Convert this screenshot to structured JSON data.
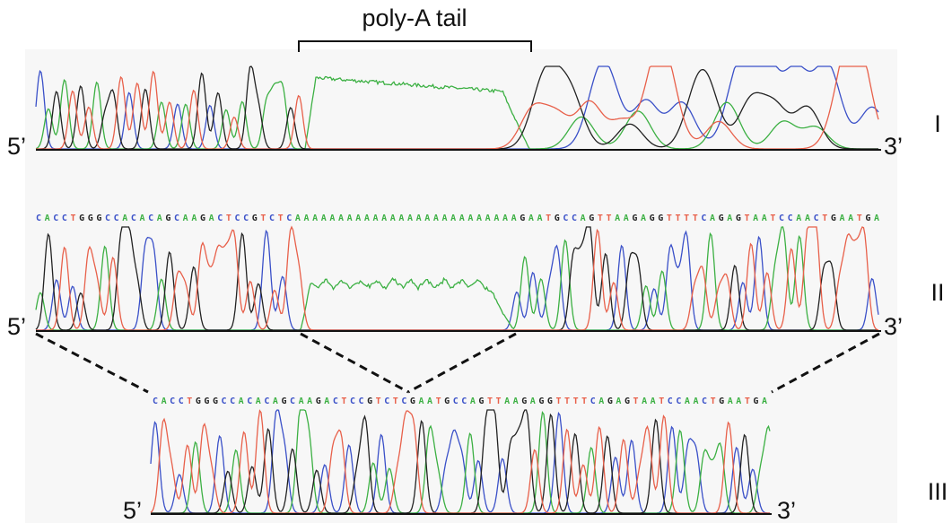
{
  "header": {
    "title": "poly-A tail"
  },
  "panels": [
    {
      "label": "I",
      "five": "5’",
      "three": "3’"
    },
    {
      "label": "II",
      "five": "5’",
      "three": "3’",
      "sequence": "CACCTGGGCCACACAGCAAGACTCCGTCTCAAAAAAAAAAAAAAAAAAAAAAAAAAGAATGCCAGTTAAGAGGTTTTCAGAGTAATCCAACTGAATGA"
    },
    {
      "label": "III",
      "five": "5’",
      "three": "3’",
      "sequence": "CACCTGGGCCACACAGCAAGACTCCGTCTCGAATGCCAGTTAAGAGGTTTTCAGAGTAATCCAACTGAATGA"
    }
  ]
}
